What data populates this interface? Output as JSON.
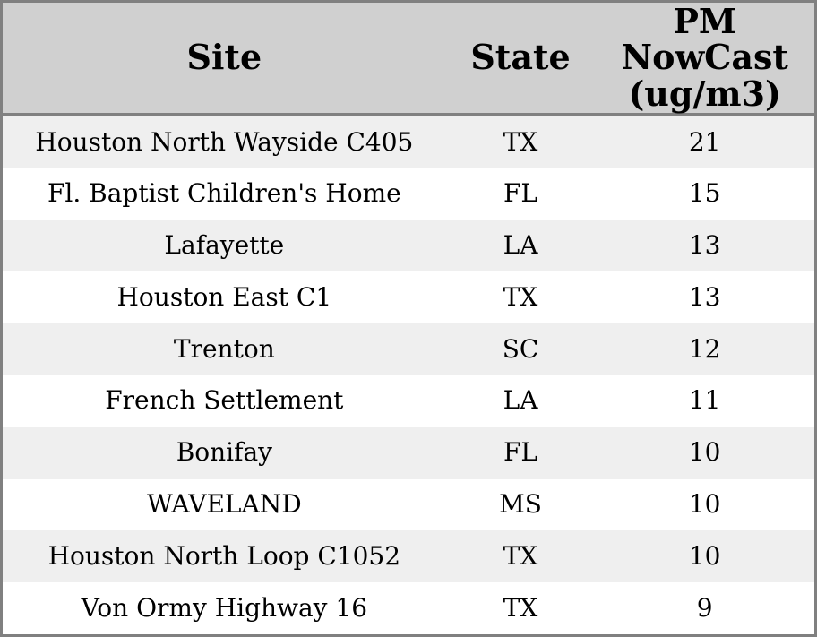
{
  "colors": {
    "outer_border": "#808080",
    "header_separator": "#808080",
    "header_background": "#d0d0d0",
    "row_alternate_background": "#efefef",
    "row_background": "#ffffff",
    "text": "#000000"
  },
  "chart_data": {
    "type": "table",
    "columns": [
      "Site",
      "State",
      "PM NowCast (ug/m3)"
    ],
    "rows": [
      {
        "site": "Houston North Wayside C405",
        "state": "TX",
        "pm_nowcast": 21
      },
      {
        "site": "Fl. Baptist Children's Home",
        "state": "FL",
        "pm_nowcast": 15
      },
      {
        "site": "Lafayette",
        "state": "LA",
        "pm_nowcast": 13
      },
      {
        "site": "Houston East C1",
        "state": "TX",
        "pm_nowcast": 13
      },
      {
        "site": "Trenton",
        "state": "SC",
        "pm_nowcast": 12
      },
      {
        "site": "French Settlement",
        "state": "LA",
        "pm_nowcast": 11
      },
      {
        "site": "Bonifay",
        "state": "FL",
        "pm_nowcast": 10
      },
      {
        "site": "WAVELAND",
        "state": "MS",
        "pm_nowcast": 10
      },
      {
        "site": "Houston North Loop C1052",
        "state": "TX",
        "pm_nowcast": 10
      },
      {
        "site": "Von Ormy Highway 16",
        "state": "TX",
        "pm_nowcast": 9
      }
    ]
  }
}
